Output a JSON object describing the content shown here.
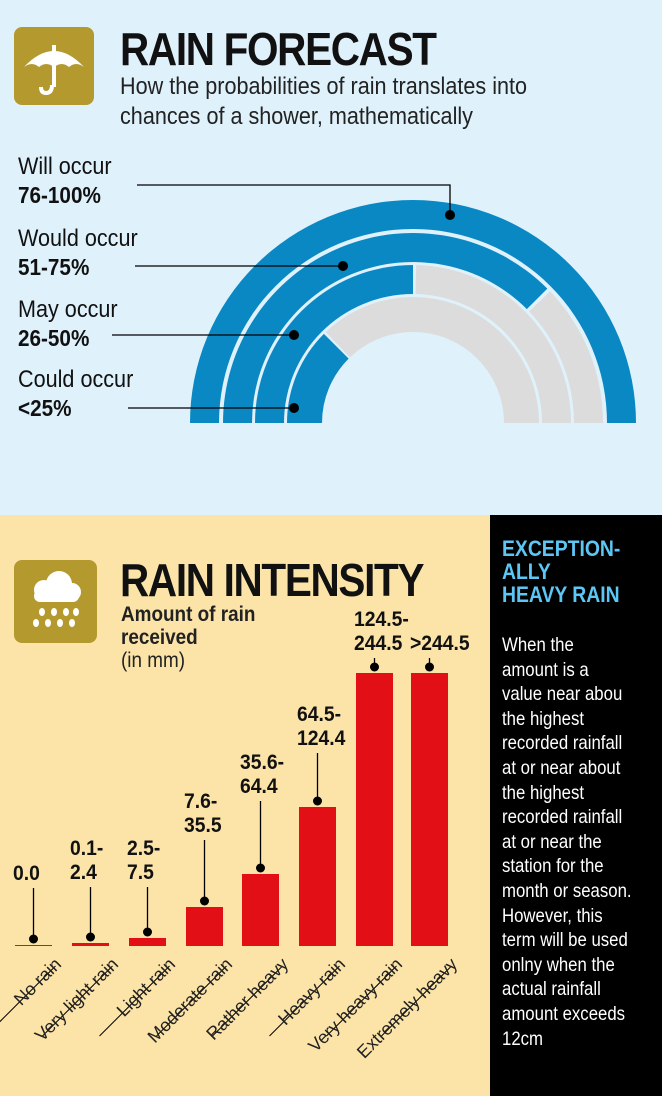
{
  "forecast": {
    "title": "RAIN FORECAST",
    "subtitle": [
      "How the probabilities of rain translates into",
      "chances of a shower, mathematically"
    ],
    "icon": "umbrella-icon",
    "colors": {
      "filled": "#0a88c4",
      "empty": "#dcdcdc",
      "background": "#dff1fb"
    },
    "levels": [
      {
        "label": "Will occur",
        "range": "76-100%",
        "fill_fraction": 1.0
      },
      {
        "label": "Would occur",
        "range": "51-75%",
        "fill_fraction": 0.75
      },
      {
        "label": "May occur",
        "range": "26-50%",
        "fill_fraction": 0.5
      },
      {
        "label": "Could occur",
        "range": "<25%",
        "fill_fraction": 0.25
      }
    ]
  },
  "intensity": {
    "title": "RAIN INTENSITY",
    "subtitle": [
      "Amount of rain",
      "received"
    ],
    "unit": "(in mm)",
    "icon": "rain-cloud-icon",
    "bar_color": "#e30f17"
  },
  "chart_data": {
    "type": "bar",
    "title": "RAIN INTENSITY",
    "ylabel": "Amount of rain received (in mm)",
    "categories": [
      "No rain",
      "Very light rain",
      "Light rain",
      "Moderate rain",
      "Rather heavy",
      "Heavy rain",
      "Very heavy rain",
      "Extremely heavy"
    ],
    "data_labels": [
      [
        "0.0"
      ],
      [
        "0.1-",
        "2.4"
      ],
      [
        "2.5-",
        "7.5"
      ],
      [
        "7.6-",
        "35.5"
      ],
      [
        "35.6-",
        "64.4"
      ],
      [
        "64.5-",
        "124.4"
      ],
      [
        "124.5-",
        "244.5"
      ],
      [
        ">244.5"
      ]
    ],
    "ranges_mm": [
      [
        0,
        0
      ],
      [
        0.1,
        2.4
      ],
      [
        2.5,
        7.5
      ],
      [
        7.6,
        35.5
      ],
      [
        35.6,
        64.4
      ],
      [
        64.5,
        124.4
      ],
      [
        124.5,
        244.5
      ],
      [
        244.5,
        null
      ]
    ],
    "grid": false
  },
  "sidebar": {
    "heading": [
      "EXCEPTION-",
      "ALLY",
      "HEAVY RAIN"
    ],
    "body": [
      "When the",
      "amount is a",
      "value near abou",
      "the highest",
      "recorded rainfall",
      "at or near about",
      "the highest",
      "recorded rainfall",
      "at or near the",
      "station for the",
      "month or season.",
      "However, this",
      "term will be used",
      "onlny when the",
      "actual rainfall",
      "amount exceeds",
      "12cm"
    ]
  }
}
